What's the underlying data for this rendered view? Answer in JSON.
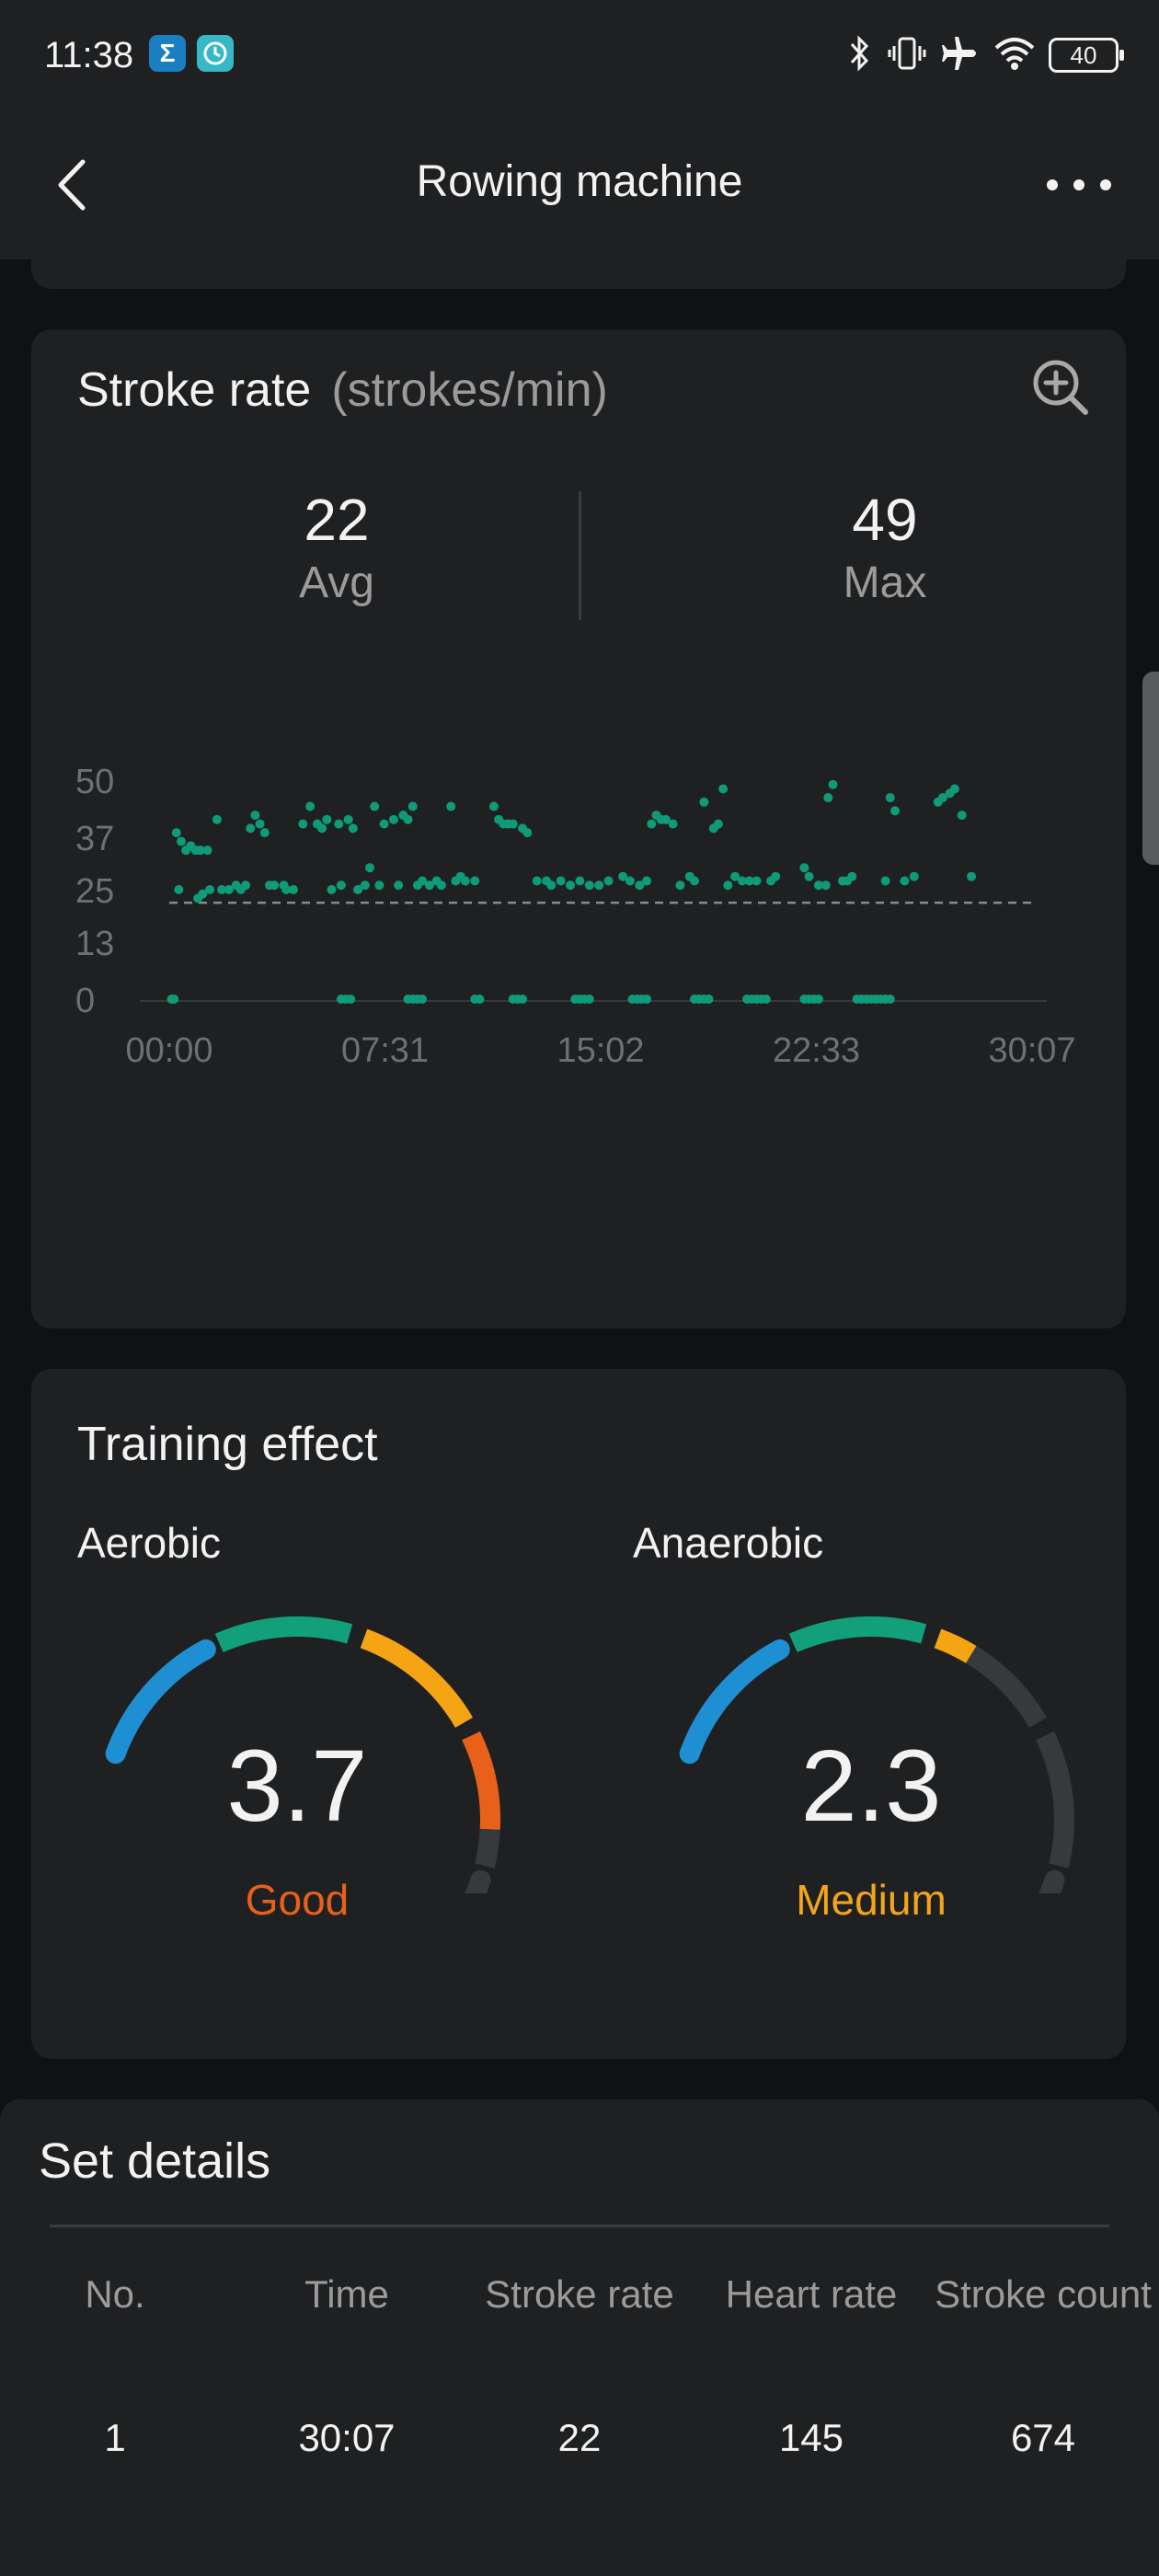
{
  "status_bar": {
    "time": "11:38",
    "app_badges": [
      {
        "name": "sigma-app-icon",
        "glyph": "Σ",
        "color": "#1a7fc1"
      },
      {
        "name": "fitness-app-icon",
        "glyph": "◔",
        "color": "#37b8c6"
      }
    ],
    "battery": "40"
  },
  "header": {
    "title": "Rowing machine"
  },
  "stroke_rate": {
    "title": "Stroke rate",
    "unit": "(strokes/min)",
    "avg": {
      "value": "22",
      "label": "Avg"
    },
    "max": {
      "value": "49",
      "label": "Max"
    }
  },
  "chart_data": {
    "type": "scatter",
    "title": "",
    "xlabel": "",
    "ylabel": "",
    "y_ticks": [
      "50",
      "37",
      "25",
      "13",
      "0"
    ],
    "x_ticks": [
      "00:00",
      "07:31",
      "15:02",
      "22:33",
      "30:07"
    ],
    "ylim": [
      0,
      50
    ],
    "x_unit": "seconds",
    "xlim": [
      0,
      1807
    ],
    "reference_line": {
      "value": 22,
      "style": "dashed"
    },
    "grid": false,
    "color": "#0f9b77",
    "series": [
      {
        "name": "",
        "points": [
          [
            15,
            38
          ],
          [
            25,
            36
          ],
          [
            35,
            34
          ],
          [
            45,
            35
          ],
          [
            55,
            34
          ],
          [
            65,
            34
          ],
          [
            80,
            34
          ],
          [
            20,
            25
          ],
          [
            60,
            23
          ],
          [
            70,
            24
          ],
          [
            85,
            25
          ],
          [
            100,
            41
          ],
          [
            110,
            25
          ],
          [
            125,
            25
          ],
          [
            140,
            26
          ],
          [
            150,
            25
          ],
          [
            160,
            26
          ],
          [
            170,
            39
          ],
          [
            180,
            42
          ],
          [
            190,
            40
          ],
          [
            200,
            38
          ],
          [
            210,
            26
          ],
          [
            220,
            26
          ],
          [
            240,
            26
          ],
          [
            245,
            25
          ],
          [
            260,
            25
          ],
          [
            280,
            40
          ],
          [
            295,
            44
          ],
          [
            310,
            40
          ],
          [
            320,
            39
          ],
          [
            330,
            41
          ],
          [
            340,
            25
          ],
          [
            355,
            40
          ],
          [
            360,
            26
          ],
          [
            375,
            41
          ],
          [
            385,
            39
          ],
          [
            395,
            25
          ],
          [
            410,
            26
          ],
          [
            420,
            30
          ],
          [
            430,
            44
          ],
          [
            440,
            26
          ],
          [
            450,
            40
          ],
          [
            470,
            41
          ],
          [
            480,
            26
          ],
          [
            490,
            42
          ],
          [
            500,
            41
          ],
          [
            510,
            44
          ],
          [
            520,
            26
          ],
          [
            530,
            27
          ],
          [
            545,
            26
          ],
          [
            560,
            27
          ],
          [
            570,
            26
          ],
          [
            590,
            44
          ],
          [
            600,
            27
          ],
          [
            610,
            28
          ],
          [
            620,
            27
          ],
          [
            640,
            27
          ],
          [
            680,
            44
          ],
          [
            690,
            41
          ],
          [
            700,
            40
          ],
          [
            710,
            40
          ],
          [
            720,
            40
          ],
          [
            740,
            39
          ],
          [
            750,
            38
          ],
          [
            770,
            27
          ],
          [
            790,
            27
          ],
          [
            800,
            26
          ],
          [
            820,
            27
          ],
          [
            840,
            26
          ],
          [
            860,
            27
          ],
          [
            880,
            26
          ],
          [
            900,
            26
          ],
          [
            920,
            27
          ],
          [
            950,
            28
          ],
          [
            965,
            27
          ],
          [
            985,
            26
          ],
          [
            1000,
            27
          ],
          [
            1010,
            40
          ],
          [
            1020,
            42
          ],
          [
            1030,
            41
          ],
          [
            1040,
            41
          ],
          [
            1055,
            40
          ],
          [
            1070,
            26
          ],
          [
            1090,
            28
          ],
          [
            1100,
            27
          ],
          [
            1120,
            45
          ],
          [
            1140,
            39
          ],
          [
            1150,
            40
          ],
          [
            1160,
            48
          ],
          [
            1170,
            26
          ],
          [
            1185,
            28
          ],
          [
            1200,
            27
          ],
          [
            1215,
            27
          ],
          [
            1230,
            27
          ],
          [
            1260,
            27
          ],
          [
            1270,
            28
          ],
          [
            1330,
            30
          ],
          [
            1340,
            28
          ],
          [
            1360,
            26
          ],
          [
            1375,
            26
          ],
          [
            1380,
            46
          ],
          [
            1390,
            49
          ],
          [
            1410,
            27
          ],
          [
            1420,
            27
          ],
          [
            1430,
            28
          ],
          [
            1500,
            27
          ],
          [
            1510,
            46
          ],
          [
            1520,
            43
          ],
          [
            1540,
            27
          ],
          [
            1560,
            28
          ],
          [
            1610,
            45
          ],
          [
            1620,
            46
          ],
          [
            1635,
            47
          ],
          [
            1645,
            48
          ],
          [
            1660,
            42
          ],
          [
            1680,
            28
          ],
          [
            5,
            0
          ],
          [
            10,
            0
          ],
          [
            360,
            0
          ],
          [
            370,
            0
          ],
          [
            380,
            0
          ],
          [
            500,
            0
          ],
          [
            510,
            0
          ],
          [
            520,
            0
          ],
          [
            530,
            0
          ],
          [
            640,
            0
          ],
          [
            650,
            0
          ],
          [
            720,
            0
          ],
          [
            730,
            0
          ],
          [
            740,
            0
          ],
          [
            850,
            0
          ],
          [
            860,
            0
          ],
          [
            870,
            0
          ],
          [
            880,
            0
          ],
          [
            970,
            0
          ],
          [
            980,
            0
          ],
          [
            990,
            0
          ],
          [
            1000,
            0
          ],
          [
            1100,
            0
          ],
          [
            1110,
            0
          ],
          [
            1120,
            0
          ],
          [
            1130,
            0
          ],
          [
            1210,
            0
          ],
          [
            1220,
            0
          ],
          [
            1230,
            0
          ],
          [
            1240,
            0
          ],
          [
            1250,
            0
          ],
          [
            1330,
            0
          ],
          [
            1340,
            0
          ],
          [
            1350,
            0
          ],
          [
            1360,
            0
          ],
          [
            1440,
            0
          ],
          [
            1450,
            0
          ],
          [
            1460,
            0
          ],
          [
            1470,
            0
          ],
          [
            1480,
            0
          ],
          [
            1490,
            0
          ],
          [
            1500,
            0
          ],
          [
            1510,
            0
          ]
        ]
      }
    ]
  },
  "training_effect": {
    "title": "Training effect",
    "aerobic": {
      "label": "Aerobic",
      "value": "3.7",
      "status": "Good",
      "status_color": "#e8611a"
    },
    "anaerobic": {
      "label": "Anaerobic",
      "value": "2.3",
      "status": "Medium",
      "status_color": "#f4a41c"
    },
    "segment_colors": [
      "#1e8fd2",
      "#11a07a",
      "#f5a414",
      "#e8611a",
      "#38393c"
    ]
  },
  "set_details": {
    "title": "Set details",
    "columns": [
      "No.",
      "Time",
      "Stroke rate",
      "Heart rate",
      "Stroke count"
    ],
    "rows": [
      [
        "1",
        "30:07",
        "22",
        "145",
        "674"
      ]
    ]
  }
}
